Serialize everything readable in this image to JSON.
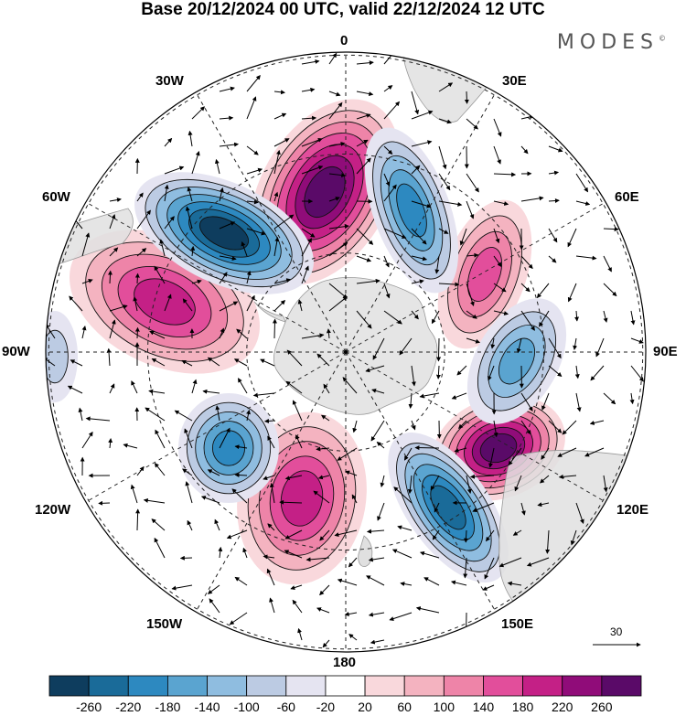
{
  "header": {
    "title": "Base 20/12/2024 00 UTC, valid 22/12/2024 12 UTC",
    "brand": "MODES",
    "brand_mark": "©"
  },
  "map": {
    "projection": "south-polar-stereographic",
    "longitude_labels": {
      "top": "0",
      "bottom": "180",
      "left": "90W",
      "right": "90E",
      "upper_left_30": "30W",
      "upper_left_60": "60W",
      "lower_left_120": "120W",
      "lower_left_150": "150W",
      "upper_right_30": "30E",
      "upper_right_60": "60E",
      "lower_right_120": "120E",
      "lower_right_150": "150E"
    },
    "vector_reference": {
      "value": "30"
    }
  },
  "colorbar": {
    "ticks": [
      "-260",
      "-220",
      "-180",
      "-140",
      "-100",
      "-60",
      "-20",
      "20",
      "60",
      "100",
      "140",
      "180",
      "220",
      "260"
    ],
    "colors": [
      "#0e3d5e",
      "#1a6b99",
      "#2d89c0",
      "#5aa4d0",
      "#8fbde0",
      "#bccbe3",
      "#e5e4f1",
      "#ffffff",
      "#f9d8dc",
      "#f4b3c0",
      "#ee84a8",
      "#e24e9b",
      "#c42086",
      "#900c79",
      "#5a0a68"
    ]
  }
}
